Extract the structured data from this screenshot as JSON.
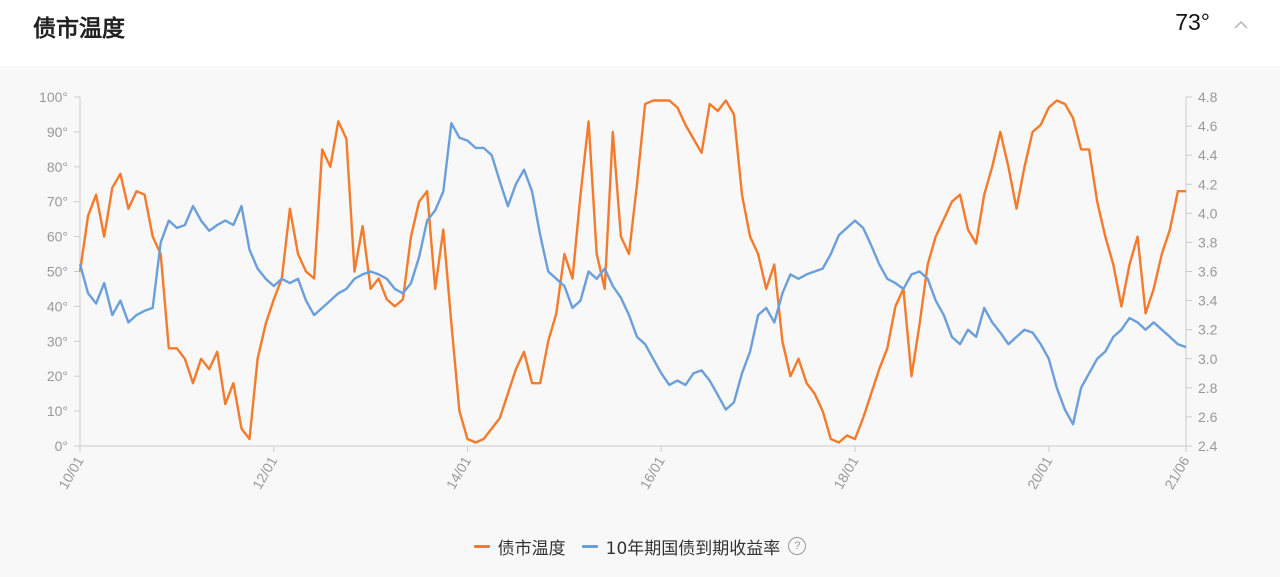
{
  "header": {
    "title": "债市温度",
    "current_value": "73°"
  },
  "chart_data": {
    "type": "line",
    "x_tick_labels": [
      "10/01",
      "12/01",
      "14/01",
      "16/01",
      "18/01",
      "20/01",
      "21/06"
    ],
    "x_tick_dates": [
      "2010-01",
      "2012-01",
      "2014-01",
      "2016-01",
      "2018-01",
      "2020-01",
      "2021-06"
    ],
    "y_left": {
      "range": [
        0,
        100
      ],
      "ticks": [
        "0°",
        "10°",
        "20°",
        "30°",
        "40°",
        "50°",
        "60°",
        "70°",
        "80°",
        "90°",
        "100°"
      ]
    },
    "y_right": {
      "range": [
        2.4,
        4.8
      ],
      "ticks": [
        "2.4",
        "2.6",
        "2.8",
        "3.0",
        "3.2",
        "3.4",
        "3.6",
        "3.8",
        "4.0",
        "4.2",
        "4.4",
        "4.6",
        "4.8"
      ]
    },
    "grid": false,
    "legend_position": "bottom-center",
    "series": [
      {
        "name": "债市温度",
        "axis": "left",
        "color": "#f47b2b",
        "points": [
          [
            "2010-01",
            50
          ],
          [
            "2010-02",
            66
          ],
          [
            "2010-03",
            72
          ],
          [
            "2010-04",
            60
          ],
          [
            "2010-05",
            74
          ],
          [
            "2010-06",
            78
          ],
          [
            "2010-07",
            68
          ],
          [
            "2010-08",
            73
          ],
          [
            "2010-09",
            72
          ],
          [
            "2010-10",
            60
          ],
          [
            "2010-11",
            55
          ],
          [
            "2010-12",
            28
          ],
          [
            "2011-01",
            28
          ],
          [
            "2011-02",
            25
          ],
          [
            "2011-03",
            18
          ],
          [
            "2011-04",
            25
          ],
          [
            "2011-05",
            22
          ],
          [
            "2011-06",
            27
          ],
          [
            "2011-07",
            12
          ],
          [
            "2011-08",
            18
          ],
          [
            "2011-09",
            5
          ],
          [
            "2011-10",
            2
          ],
          [
            "2011-11",
            25
          ],
          [
            "2011-12",
            35
          ],
          [
            "2012-01",
            42
          ],
          [
            "2012-02",
            48
          ],
          [
            "2012-03",
            68
          ],
          [
            "2012-04",
            55
          ],
          [
            "2012-05",
            50
          ],
          [
            "2012-06",
            48
          ],
          [
            "2012-07",
            85
          ],
          [
            "2012-08",
            80
          ],
          [
            "2012-09",
            93
          ],
          [
            "2012-10",
            88
          ],
          [
            "2012-11",
            50
          ],
          [
            "2012-12",
            63
          ],
          [
            "2013-01",
            45
          ],
          [
            "2013-02",
            48
          ],
          [
            "2013-03",
            42
          ],
          [
            "2013-04",
            40
          ],
          [
            "2013-05",
            42
          ],
          [
            "2013-06",
            60
          ],
          [
            "2013-07",
            70
          ],
          [
            "2013-08",
            73
          ],
          [
            "2013-09",
            45
          ],
          [
            "2013-10",
            62
          ],
          [
            "2013-11",
            35
          ],
          [
            "2013-12",
            10
          ],
          [
            "2014-01",
            2
          ],
          [
            "2014-02",
            1
          ],
          [
            "2014-03",
            2
          ],
          [
            "2014-04",
            5
          ],
          [
            "2014-05",
            8
          ],
          [
            "2014-06",
            15
          ],
          [
            "2014-07",
            22
          ],
          [
            "2014-08",
            27
          ],
          [
            "2014-09",
            18
          ],
          [
            "2014-10",
            18
          ],
          [
            "2014-11",
            30
          ],
          [
            "2014-12",
            38
          ],
          [
            "2015-01",
            55
          ],
          [
            "2015-02",
            48
          ],
          [
            "2015-03",
            72
          ],
          [
            "2015-04",
            93
          ],
          [
            "2015-05",
            55
          ],
          [
            "2015-06",
            45
          ],
          [
            "2015-07",
            90
          ],
          [
            "2015-08",
            60
          ],
          [
            "2015-09",
            55
          ],
          [
            "2015-10",
            75
          ],
          [
            "2015-11",
            98
          ],
          [
            "2015-12",
            99
          ],
          [
            "2016-01",
            99
          ],
          [
            "2016-02",
            99
          ],
          [
            "2016-03",
            97
          ],
          [
            "2016-04",
            92
          ],
          [
            "2016-05",
            88
          ],
          [
            "2016-06",
            84
          ],
          [
            "2016-07",
            98
          ],
          [
            "2016-08",
            96
          ],
          [
            "2016-09",
            99
          ],
          [
            "2016-10",
            95
          ],
          [
            "2016-11",
            72
          ],
          [
            "2016-12",
            60
          ],
          [
            "2017-01",
            55
          ],
          [
            "2017-02",
            45
          ],
          [
            "2017-03",
            52
          ],
          [
            "2017-04",
            30
          ],
          [
            "2017-05",
            20
          ],
          [
            "2017-06",
            25
          ],
          [
            "2017-07",
            18
          ],
          [
            "2017-08",
            15
          ],
          [
            "2017-09",
            10
          ],
          [
            "2017-10",
            2
          ],
          [
            "2017-11",
            1
          ],
          [
            "2017-12",
            3
          ],
          [
            "2018-01",
            2
          ],
          [
            "2018-02",
            8
          ],
          [
            "2018-03",
            15
          ],
          [
            "2018-04",
            22
          ],
          [
            "2018-05",
            28
          ],
          [
            "2018-06",
            40
          ],
          [
            "2018-07",
            45
          ],
          [
            "2018-08",
            20
          ],
          [
            "2018-09",
            35
          ],
          [
            "2018-10",
            52
          ],
          [
            "2018-11",
            60
          ],
          [
            "2018-12",
            65
          ],
          [
            "2019-01",
            70
          ],
          [
            "2019-02",
            72
          ],
          [
            "2019-03",
            62
          ],
          [
            "2019-04",
            58
          ],
          [
            "2019-05",
            72
          ],
          [
            "2019-06",
            80
          ],
          [
            "2019-07",
            90
          ],
          [
            "2019-08",
            80
          ],
          [
            "2019-09",
            68
          ],
          [
            "2019-10",
            80
          ],
          [
            "2019-11",
            90
          ],
          [
            "2019-12",
            92
          ],
          [
            "2020-01",
            97
          ],
          [
            "2020-02",
            99
          ],
          [
            "2020-03",
            98
          ],
          [
            "2020-04",
            94
          ],
          [
            "2020-05",
            85
          ],
          [
            "2020-06",
            85
          ],
          [
            "2020-07",
            70
          ],
          [
            "2020-08",
            60
          ],
          [
            "2020-09",
            52
          ],
          [
            "2020-10",
            40
          ],
          [
            "2020-11",
            52
          ],
          [
            "2020-12",
            60
          ],
          [
            "2021-01",
            38
          ],
          [
            "2021-02",
            45
          ],
          [
            "2021-03",
            55
          ],
          [
            "2021-04",
            62
          ],
          [
            "2021-05",
            73
          ],
          [
            "2021-06",
            73
          ]
        ]
      },
      {
        "name": "10年期国债到期收益率",
        "axis": "right",
        "color": "#6a9fdb",
        "points": [
          [
            "2010-01",
            3.65
          ],
          [
            "2010-02",
            3.45
          ],
          [
            "2010-03",
            3.38
          ],
          [
            "2010-04",
            3.52
          ],
          [
            "2010-05",
            3.3
          ],
          [
            "2010-06",
            3.4
          ],
          [
            "2010-07",
            3.25
          ],
          [
            "2010-08",
            3.3
          ],
          [
            "2010-09",
            3.33
          ],
          [
            "2010-10",
            3.35
          ],
          [
            "2010-11",
            3.8
          ],
          [
            "2010-12",
            3.95
          ],
          [
            "2011-01",
            3.9
          ],
          [
            "2011-02",
            3.92
          ],
          [
            "2011-03",
            4.05
          ],
          [
            "2011-04",
            3.95
          ],
          [
            "2011-05",
            3.88
          ],
          [
            "2011-06",
            3.92
          ],
          [
            "2011-07",
            3.95
          ],
          [
            "2011-08",
            3.92
          ],
          [
            "2011-09",
            4.05
          ],
          [
            "2011-10",
            3.75
          ],
          [
            "2011-11",
            3.62
          ],
          [
            "2011-12",
            3.55
          ],
          [
            "2012-01",
            3.5
          ],
          [
            "2012-02",
            3.55
          ],
          [
            "2012-03",
            3.52
          ],
          [
            "2012-04",
            3.55
          ],
          [
            "2012-05",
            3.4
          ],
          [
            "2012-06",
            3.3
          ],
          [
            "2012-07",
            3.35
          ],
          [
            "2012-08",
            3.4
          ],
          [
            "2012-09",
            3.45
          ],
          [
            "2012-10",
            3.48
          ],
          [
            "2012-11",
            3.55
          ],
          [
            "2012-12",
            3.58
          ],
          [
            "2013-01",
            3.6
          ],
          [
            "2013-02",
            3.58
          ],
          [
            "2013-03",
            3.55
          ],
          [
            "2013-04",
            3.48
          ],
          [
            "2013-05",
            3.45
          ],
          [
            "2013-06",
            3.52
          ],
          [
            "2013-07",
            3.7
          ],
          [
            "2013-08",
            3.95
          ],
          [
            "2013-09",
            4.02
          ],
          [
            "2013-10",
            4.15
          ],
          [
            "2013-11",
            4.62
          ],
          [
            "2013-12",
            4.52
          ],
          [
            "2014-01",
            4.5
          ],
          [
            "2014-02",
            4.45
          ],
          [
            "2014-03",
            4.45
          ],
          [
            "2014-04",
            4.4
          ],
          [
            "2014-05",
            4.22
          ],
          [
            "2014-06",
            4.05
          ],
          [
            "2014-07",
            4.2
          ],
          [
            "2014-08",
            4.3
          ],
          [
            "2014-09",
            4.15
          ],
          [
            "2014-10",
            3.85
          ],
          [
            "2014-11",
            3.6
          ],
          [
            "2014-12",
            3.55
          ],
          [
            "2015-01",
            3.5
          ],
          [
            "2015-02",
            3.35
          ],
          [
            "2015-03",
            3.4
          ],
          [
            "2015-04",
            3.6
          ],
          [
            "2015-05",
            3.55
          ],
          [
            "2015-06",
            3.62
          ],
          [
            "2015-07",
            3.5
          ],
          [
            "2015-08",
            3.42
          ],
          [
            "2015-09",
            3.3
          ],
          [
            "2015-10",
            3.15
          ],
          [
            "2015-11",
            3.1
          ],
          [
            "2015-12",
            3.0
          ],
          [
            "2016-01",
            2.9
          ],
          [
            "2016-02",
            2.82
          ],
          [
            "2016-03",
            2.85
          ],
          [
            "2016-04",
            2.82
          ],
          [
            "2016-05",
            2.9
          ],
          [
            "2016-06",
            2.92
          ],
          [
            "2016-07",
            2.85
          ],
          [
            "2016-08",
            2.75
          ],
          [
            "2016-09",
            2.65
          ],
          [
            "2016-10",
            2.7
          ],
          [
            "2016-11",
            2.9
          ],
          [
            "2016-12",
            3.05
          ],
          [
            "2017-01",
            3.3
          ],
          [
            "2017-02",
            3.35
          ],
          [
            "2017-03",
            3.25
          ],
          [
            "2017-04",
            3.45
          ],
          [
            "2017-05",
            3.58
          ],
          [
            "2017-06",
            3.55
          ],
          [
            "2017-07",
            3.58
          ],
          [
            "2017-08",
            3.6
          ],
          [
            "2017-09",
            3.62
          ],
          [
            "2017-10",
            3.72
          ],
          [
            "2017-11",
            3.85
          ],
          [
            "2017-12",
            3.9
          ],
          [
            "2018-01",
            3.95
          ],
          [
            "2018-02",
            3.9
          ],
          [
            "2018-03",
            3.78
          ],
          [
            "2018-04",
            3.65
          ],
          [
            "2018-05",
            3.55
          ],
          [
            "2018-06",
            3.52
          ],
          [
            "2018-07",
            3.48
          ],
          [
            "2018-08",
            3.58
          ],
          [
            "2018-09",
            3.6
          ],
          [
            "2018-10",
            3.55
          ],
          [
            "2018-11",
            3.4
          ],
          [
            "2018-12",
            3.3
          ],
          [
            "2019-01",
            3.15
          ],
          [
            "2019-02",
            3.1
          ],
          [
            "2019-03",
            3.2
          ],
          [
            "2019-04",
            3.15
          ],
          [
            "2019-05",
            3.35
          ],
          [
            "2019-06",
            3.25
          ],
          [
            "2019-07",
            3.18
          ],
          [
            "2019-08",
            3.1
          ],
          [
            "2019-09",
            3.15
          ],
          [
            "2019-10",
            3.2
          ],
          [
            "2019-11",
            3.18
          ],
          [
            "2019-12",
            3.1
          ],
          [
            "2020-01",
            3.0
          ],
          [
            "2020-02",
            2.8
          ],
          [
            "2020-03",
            2.65
          ],
          [
            "2020-04",
            2.55
          ],
          [
            "2020-05",
            2.8
          ],
          [
            "2020-06",
            2.9
          ],
          [
            "2020-07",
            3.0
          ],
          [
            "2020-08",
            3.05
          ],
          [
            "2020-09",
            3.15
          ],
          [
            "2020-10",
            3.2
          ],
          [
            "2020-11",
            3.28
          ],
          [
            "2020-12",
            3.25
          ],
          [
            "2021-01",
            3.2
          ],
          [
            "2021-02",
            3.25
          ],
          [
            "2021-03",
            3.2
          ],
          [
            "2021-04",
            3.15
          ],
          [
            "2021-05",
            3.1
          ],
          [
            "2021-06",
            3.08
          ]
        ]
      }
    ]
  }
}
